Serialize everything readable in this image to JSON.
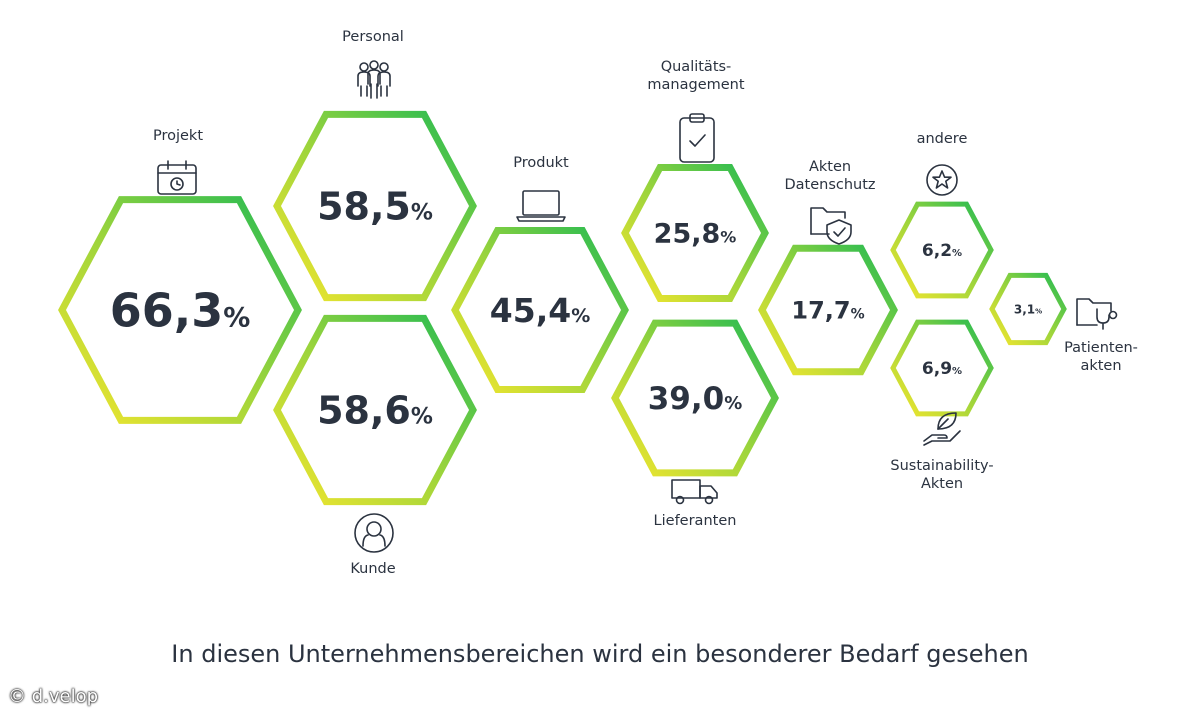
{
  "chart_data": {
    "type": "hexagon-bubble",
    "title": "In diesen Unternehmensbereichen wird ein besonderer Bedarf gesehen",
    "unit": "%",
    "decimal_separator": ",",
    "categories": [
      "Projekt",
      "Personal",
      "Kunde",
      "Produkt",
      "Qualitäts-\nmanagement",
      "Lieferanten",
      "Akten\nDatenschutz",
      "andere",
      "Sustainability-\nAkten",
      "Patienten-\nakten"
    ],
    "values": [
      66.3,
      58.5,
      58.6,
      45.4,
      25.8,
      39.0,
      17.7,
      6.2,
      6.9,
      3.1
    ],
    "value_labels": [
      "66,3",
      "58,5",
      "58,6",
      "45,4",
      "25,8",
      "39,0",
      "17,7",
      "6,2",
      "6,9",
      "3,1"
    ],
    "icons": [
      "calendar-icon",
      "people-icon",
      "person-circle-icon",
      "laptop-icon",
      "clipboard-check-icon",
      "truck-icon",
      "folder-shield-icon",
      "star-circle-icon",
      "leaf-hand-icon",
      "folder-stethoscope-icon"
    ],
    "gradient_colors": {
      "top_right": "#1db954",
      "bottom_left": "#f5e62e"
    },
    "text_color": "#2b3340"
  },
  "copyright": "© d.velop"
}
